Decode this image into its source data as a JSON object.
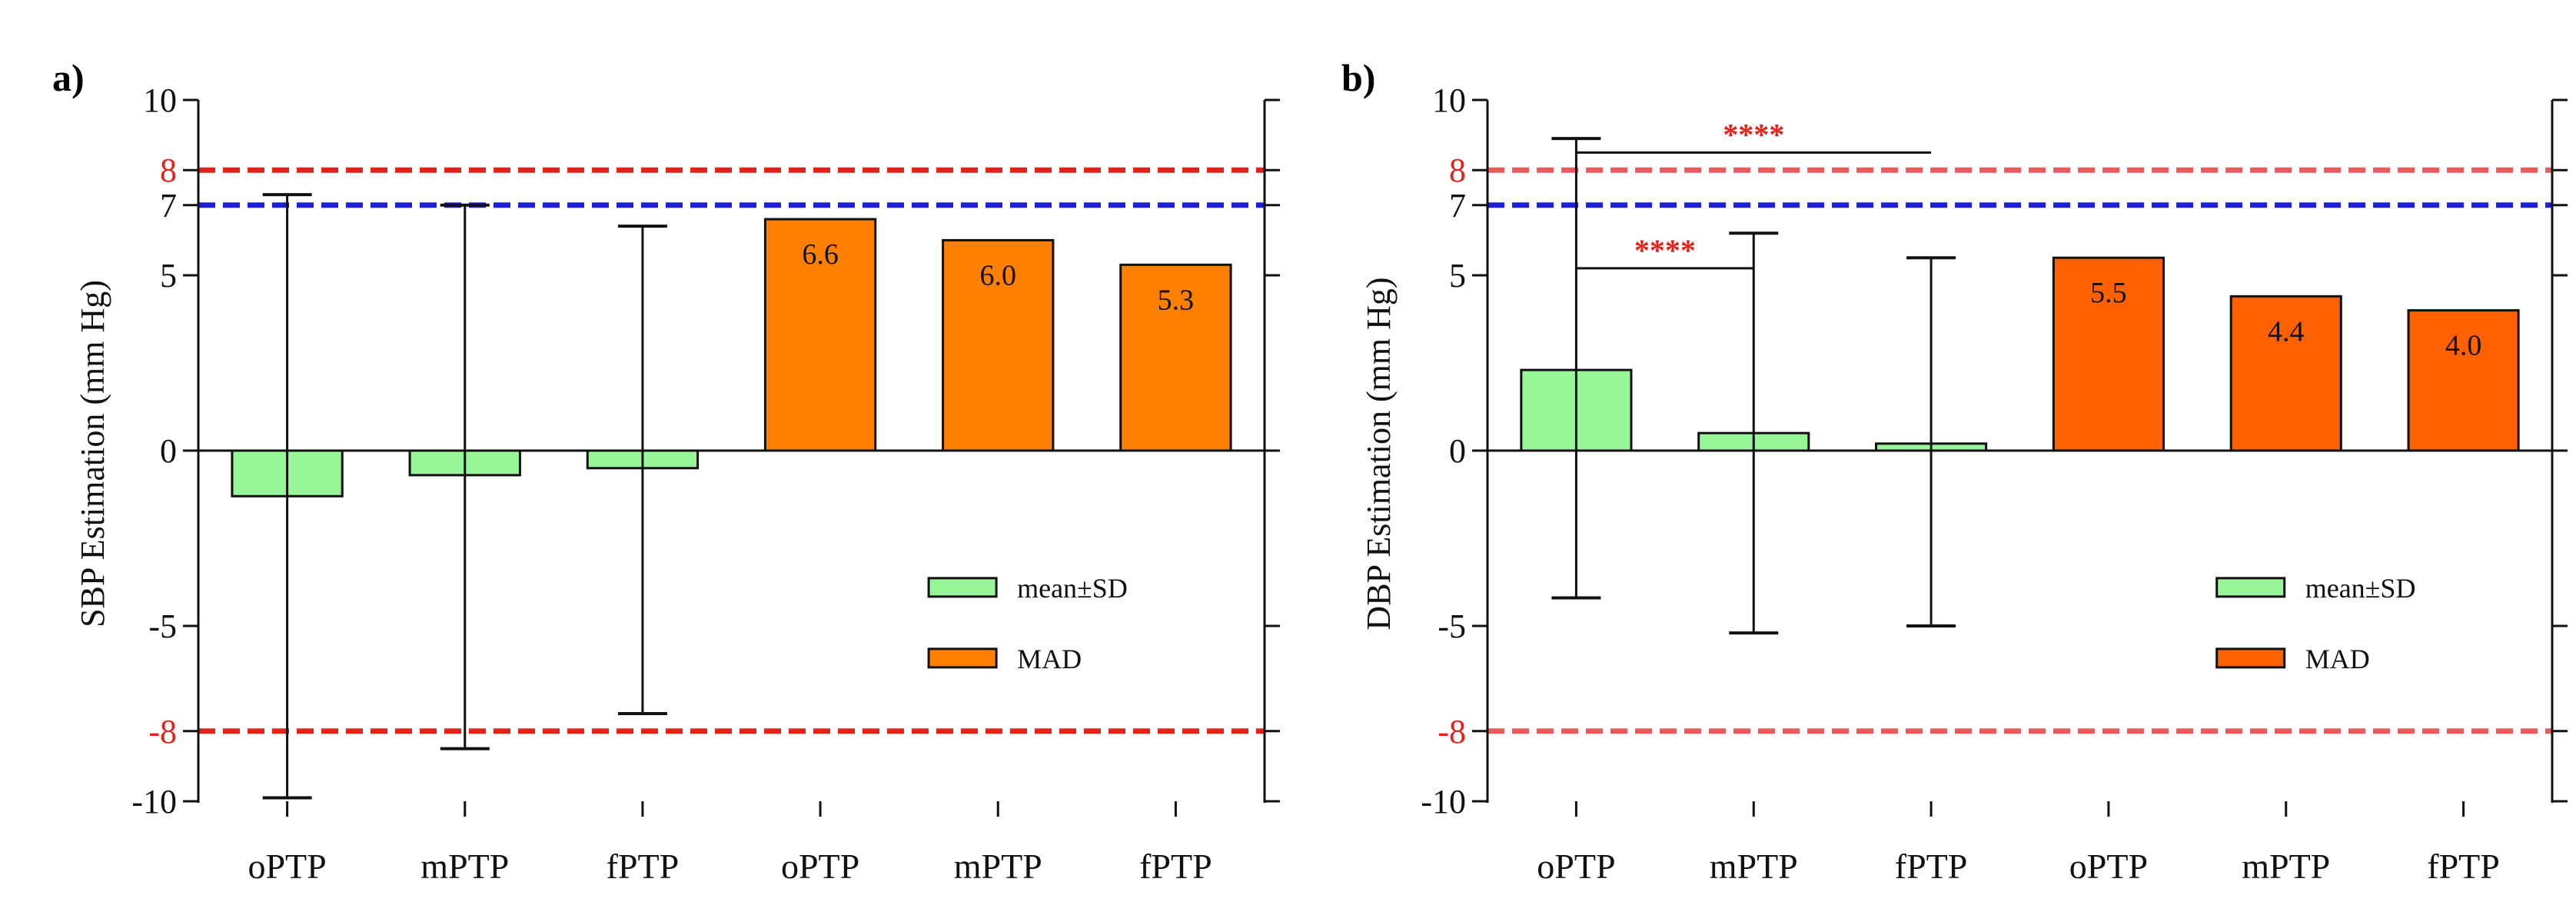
{
  "chart_data": [
    {
      "type": "bar",
      "panel": "a)",
      "ylabel": "SBP Estimation (mm Hg)",
      "ylim": [
        -10,
        10
      ],
      "yticks": [
        "10",
        "8",
        "7",
        "5",
        "0",
        "-5",
        "-8",
        "-10"
      ],
      "red_yticks": [
        "8",
        "-8"
      ],
      "categories": [
        "oPTP",
        "mPTP",
        "fPTP",
        "oPTP",
        "mPTP",
        "fPTP"
      ],
      "series": [
        {
          "name": "mean±SD",
          "color": "#98f598",
          "values": [
            -1.3,
            -0.7,
            -0.5,
            null,
            null,
            null
          ],
          "sd_upper": [
            7.3,
            7.0,
            6.4,
            null,
            null,
            null
          ],
          "sd_lower": [
            -9.9,
            -8.5,
            -7.5,
            null,
            null,
            null
          ]
        },
        {
          "name": "MAD",
          "color": "#ff8000",
          "values": [
            null,
            null,
            null,
            6.6,
            6.0,
            5.3
          ],
          "labels": [
            null,
            null,
            null,
            "6.6",
            "6.0",
            "5.3"
          ]
        }
      ],
      "reference_lines": [
        {
          "y": 8,
          "color": "#e2231a"
        },
        {
          "y": 7,
          "color": "#1f1fd6"
        },
        {
          "y": -8,
          "color": "#e2231a"
        }
      ],
      "significance": [],
      "legend": {
        "placement": "lower-right",
        "entries": [
          "mean±SD",
          "MAD"
        ]
      }
    },
    {
      "type": "bar",
      "panel": "b)",
      "ylabel": "DBP Estimation (mm Hg)",
      "ylim": [
        -10,
        10
      ],
      "yticks": [
        "10",
        "8",
        "7",
        "5",
        "0",
        "-5",
        "-8",
        "-10"
      ],
      "red_yticks": [
        "8",
        "-8"
      ],
      "categories": [
        "oPTP",
        "mPTP",
        "fPTP",
        "oPTP",
        "mPTP",
        "fPTP"
      ],
      "series": [
        {
          "name": "mean±SD",
          "color": "#98f598",
          "values": [
            2.3,
            0.5,
            0.2,
            null,
            null,
            null
          ],
          "sd_upper": [
            8.9,
            6.2,
            5.5,
            null,
            null,
            null
          ],
          "sd_lower": [
            -4.2,
            -5.2,
            -5.0,
            null,
            null,
            null
          ]
        },
        {
          "name": "MAD",
          "color": "#ff6100",
          "values": [
            null,
            null,
            null,
            5.5,
            4.4,
            4.0
          ],
          "labels": [
            null,
            null,
            null,
            "5.5",
            "4.4",
            "4.0"
          ]
        }
      ],
      "reference_lines": [
        {
          "y": 8,
          "color": "#ea5a5a"
        },
        {
          "y": 7,
          "color": "#1f1fd6"
        },
        {
          "y": -8,
          "color": "#ea5a5a"
        }
      ],
      "significance": [
        {
          "from": 0,
          "to": 2,
          "y": 8.5,
          "label": "****"
        },
        {
          "from": 0,
          "to": 1,
          "y": 5.2,
          "label": "****"
        }
      ],
      "legend": {
        "placement": "lower-right",
        "entries": [
          "mean±SD",
          "MAD"
        ]
      }
    }
  ]
}
